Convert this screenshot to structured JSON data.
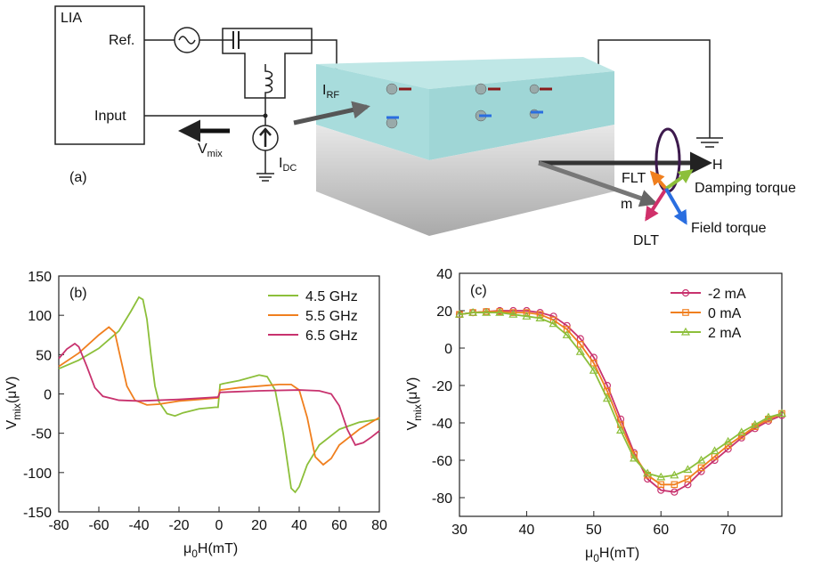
{
  "diagram": {
    "panel": "(a)",
    "lia": "LIA",
    "ref": "Ref.",
    "input": "Input",
    "vmix": {
      "main": "V",
      "sub": "mix"
    },
    "irf": {
      "main": "I",
      "sub": "RF"
    },
    "idc": {
      "main": "I",
      "sub": "DC"
    },
    "h": "H",
    "flt": "FLT",
    "damping": "Damping torque",
    "m": "m",
    "dlt": "DLT",
    "field": "Field torque"
  },
  "chart_data": [
    {
      "type": "line",
      "label": "(b)",
      "xlabel": [
        {
          "text": "μ"
        },
        {
          "text": "0",
          "sub": true
        },
        {
          "text": "H(mT)"
        }
      ],
      "ylabel": [
        {
          "text": "V"
        },
        {
          "text": "mix",
          "sub": true
        },
        {
          "text": "(μV)"
        }
      ],
      "xlim": [
        -80,
        80
      ],
      "xticks": [
        -80,
        -60,
        -40,
        -20,
        0,
        20,
        40,
        60,
        80
      ],
      "ylim": [
        -150,
        150
      ],
      "yticks": [
        -150,
        -100,
        -50,
        0,
        50,
        100,
        150
      ],
      "legend": "upper right",
      "series": [
        {
          "name": "4.5 GHz",
          "color": "#8cbf3a",
          "x": [
            -80,
            -70,
            -60,
            -50,
            -44,
            -40,
            -38,
            -36,
            -34,
            -32,
            -30,
            -26,
            -22,
            -18,
            -10,
            -2,
            -0.5,
            0.5,
            2,
            10,
            20,
            24,
            28,
            32,
            36,
            38,
            40,
            44,
            50,
            60,
            70,
            80
          ],
          "values": [
            32,
            43,
            58,
            80,
            105,
            123,
            120,
            95,
            50,
            10,
            -10,
            -25,
            -28,
            -24,
            -19,
            -17,
            -17,
            12,
            13,
            17,
            24,
            22,
            5,
            -50,
            -120,
            -125,
            -118,
            -90,
            -65,
            -45,
            -36,
            -32
          ]
        },
        {
          "name": "5.5 GHz",
          "color": "#f07f1e",
          "x": [
            -80,
            -70,
            -60,
            -55,
            -52,
            -50,
            -46,
            -42,
            -36,
            -30,
            -20,
            -10,
            -0.5,
            0.5,
            10,
            20,
            30,
            36,
            40,
            44,
            48,
            52,
            56,
            60,
            70,
            80
          ],
          "values": [
            35,
            52,
            75,
            85,
            78,
            55,
            10,
            -8,
            -14,
            -13,
            -9,
            -7,
            -5,
            5,
            8,
            10,
            12,
            12,
            5,
            -30,
            -80,
            -90,
            -82,
            -65,
            -45,
            -30
          ]
        },
        {
          "name": "6.5 GHz",
          "color": "#c8326e",
          "x": [
            -80,
            -76,
            -72,
            -70,
            -66,
            -62,
            -58,
            -50,
            -40,
            -20,
            -0.5,
            0.5,
            20,
            40,
            50,
            56,
            60,
            64,
            68,
            72,
            76,
            80
          ],
          "values": [
            45,
            57,
            64,
            60,
            35,
            8,
            -3,
            -8,
            -9,
            -7,
            -4,
            2,
            4,
            5,
            4,
            0,
            -15,
            -45,
            -65,
            -62,
            -55,
            -47
          ]
        }
      ]
    },
    {
      "type": "line",
      "label": "(c)",
      "xlabel": [
        {
          "text": "μ"
        },
        {
          "text": "0",
          "sub": true
        },
        {
          "text": "H(mT)"
        }
      ],
      "ylabel": [
        {
          "text": "V"
        },
        {
          "text": "mix",
          "sub": true
        },
        {
          "text": "(μV)"
        }
      ],
      "xlim": [
        30,
        78
      ],
      "xticks": [
        30,
        40,
        50,
        60,
        70
      ],
      "ylim": [
        -90,
        40
      ],
      "yticks": [
        -80,
        -60,
        -40,
        -20,
        0,
        20,
        40
      ],
      "legend": "upper right",
      "x": [
        30,
        32,
        34,
        36,
        38,
        40,
        42,
        44,
        46,
        48,
        50,
        52,
        54,
        56,
        58,
        60,
        62,
        64,
        66,
        68,
        70,
        72,
        74,
        76,
        78
      ],
      "series": [
        {
          "name": "-2 mA",
          "color": "#c8326e",
          "marker": "circle",
          "values": [
            18,
            19,
            19.5,
            20,
            20,
            20,
            19,
            17,
            12,
            5,
            -5,
            -20,
            -38,
            -56,
            -70,
            -76,
            -77,
            -73,
            -66,
            -60,
            -54,
            -48,
            -43,
            -39,
            -36
          ]
        },
        {
          "name": "0 mA",
          "color": "#f07f1e",
          "marker": "square",
          "values": [
            18,
            19,
            19.5,
            19.5,
            19,
            19,
            18,
            15,
            10,
            2,
            -8,
            -23,
            -41,
            -57,
            -68,
            -73,
            -73,
            -70,
            -64,
            -58,
            -52,
            -47,
            -42,
            -38,
            -35
          ]
        },
        {
          "name": "2 mA",
          "color": "#8cbf3a",
          "marker": "triangle",
          "values": [
            18,
            19,
            19,
            19,
            18,
            17,
            16,
            13,
            7,
            -2,
            -12,
            -27,
            -44,
            -59,
            -67,
            -69,
            -68,
            -65,
            -60,
            -55,
            -50,
            -45,
            -41,
            -37,
            -35
          ]
        }
      ]
    }
  ]
}
